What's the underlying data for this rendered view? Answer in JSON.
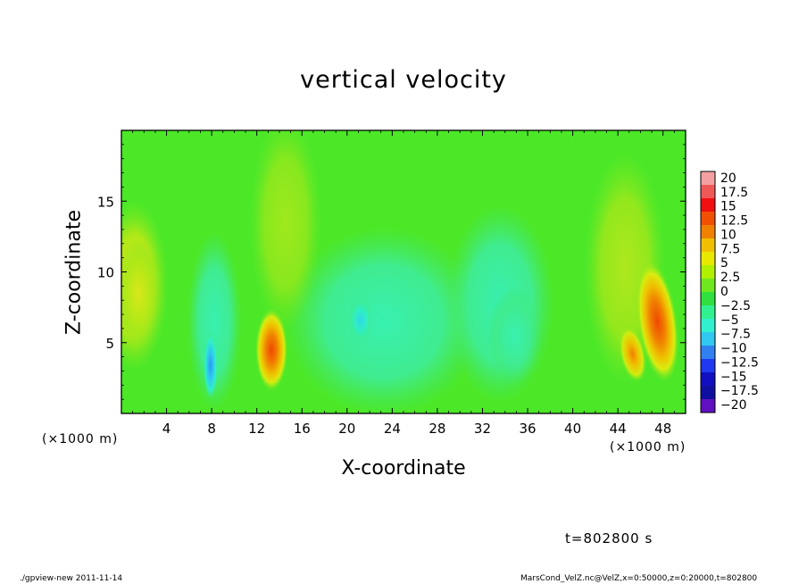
{
  "header": {
    "title": "vertical velocity"
  },
  "footer": {
    "left": "./gpview-new  2011-11-14",
    "right": "MarsCond_VelZ.nc@VelZ,x=0:50000,z=0:20000,t=802800"
  },
  "annotations": {
    "time": "t=802800 s",
    "x_unit_left": "(×1000 m)",
    "x_unit_right": "(×1000 m)"
  },
  "chart_data": {
    "type": "heatmap",
    "title": "vertical velocity",
    "xlabel": "X-coordinate",
    "ylabel": "Z-coordinate",
    "x_unit": "(×1000 m)",
    "xlim": [
      0,
      50
    ],
    "ylim": [
      0,
      20
    ],
    "x_ticks": [
      4,
      8,
      12,
      16,
      20,
      24,
      28,
      32,
      36,
      40,
      44,
      48
    ],
    "y_ticks": [
      5,
      10,
      15
    ],
    "colorbar": {
      "levels": [
        20,
        17.5,
        15,
        12.5,
        10,
        7.5,
        5,
        2.5,
        0,
        -2.5,
        -5,
        -7.5,
        -10,
        -12.5,
        -15,
        -17.5,
        -20
      ],
      "labels": [
        "20",
        "17.5",
        "15",
        "12.5",
        "10",
        "7.5",
        "5",
        "2.5",
        "0",
        "−2.5",
        "−5",
        "−7.5",
        "−10",
        "−12.5",
        "−15",
        "−17.5",
        "−20"
      ],
      "colors": [
        "#f4a0a0",
        "#f05858",
        "#f01010",
        "#f05000",
        "#f08000",
        "#f0c000",
        "#e8e800",
        "#b0f000",
        "#70e820",
        "#30e040",
        "#30f090",
        "#30f0d0",
        "#30c8f0",
        "#3080f0",
        "#2038f0",
        "#1010c0",
        "#1010a0",
        "#6010c0"
      ]
    },
    "features": [
      {
        "kind": "positive",
        "x": 13.3,
        "z": 4.5,
        "max": 12.5
      },
      {
        "kind": "positive",
        "x": 47.5,
        "z": 6.5,
        "max": 12.5
      },
      {
        "kind": "positive",
        "x": 45.3,
        "z": 4.2,
        "max": 10
      },
      {
        "kind": "positive",
        "x": 1.5,
        "z": 8.5,
        "max": 5
      },
      {
        "kind": "negative",
        "x": 7.9,
        "z": 3.4,
        "min": -7.5
      },
      {
        "kind": "negative",
        "x": 21.2,
        "z": 6.6,
        "min": -5
      },
      {
        "kind": "negative",
        "x": 34.8,
        "z": 5.5,
        "min": -5
      }
    ],
    "background_value": 0
  }
}
